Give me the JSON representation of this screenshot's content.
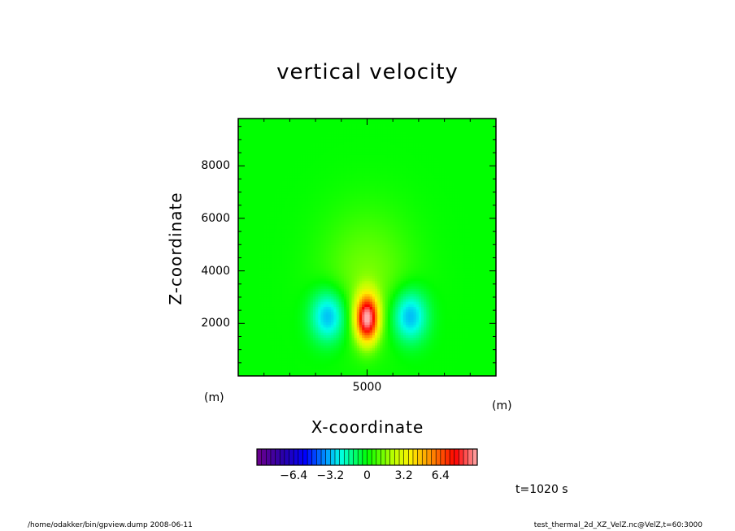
{
  "chart_data": {
    "type": "heatmap",
    "title": "vertical velocity",
    "xlabel": "X-coordinate",
    "ylabel": "Z-coordinate",
    "x_unit": "(m)",
    "y_unit": "(m)",
    "xlim": [
      0,
      10000
    ],
    "ylim": [
      0,
      9800
    ],
    "x_ticks": [
      {
        "value": 5000,
        "label": "5000"
      }
    ],
    "y_ticks": [
      {
        "value": 2000,
        "label": "2000"
      },
      {
        "value": 4000,
        "label": "4000"
      },
      {
        "value": 6000,
        "label": "6000"
      },
      {
        "value": 8000,
        "label": "8000"
      }
    ],
    "field": {
      "updraft_center": {
        "x": 5000,
        "z": 2200
      },
      "updraft_max": 9.0,
      "downdraft_centers": [
        {
          "x": 3500,
          "z": 2300
        },
        {
          "x": 6650,
          "z": 2300
        }
      ],
      "downdraft_min": -3.5
    },
    "colorbar": {
      "range": [
        -9.6,
        9.6
      ],
      "ticks": [
        {
          "value": -6.4,
          "label": "−6.4"
        },
        {
          "value": -3.2,
          "label": "−3.2"
        },
        {
          "value": 0,
          "label": "0"
        },
        {
          "value": 3.2,
          "label": "3.2"
        },
        {
          "value": 6.4,
          "label": "6.4"
        }
      ]
    }
  },
  "time_label": "t=1020 s",
  "footer_left": "/home/odakker/bin/gpview.dump   2008-06-11",
  "footer_right": "test_thermal_2d_XZ_VelZ.nc@VelZ,t=60:3000"
}
